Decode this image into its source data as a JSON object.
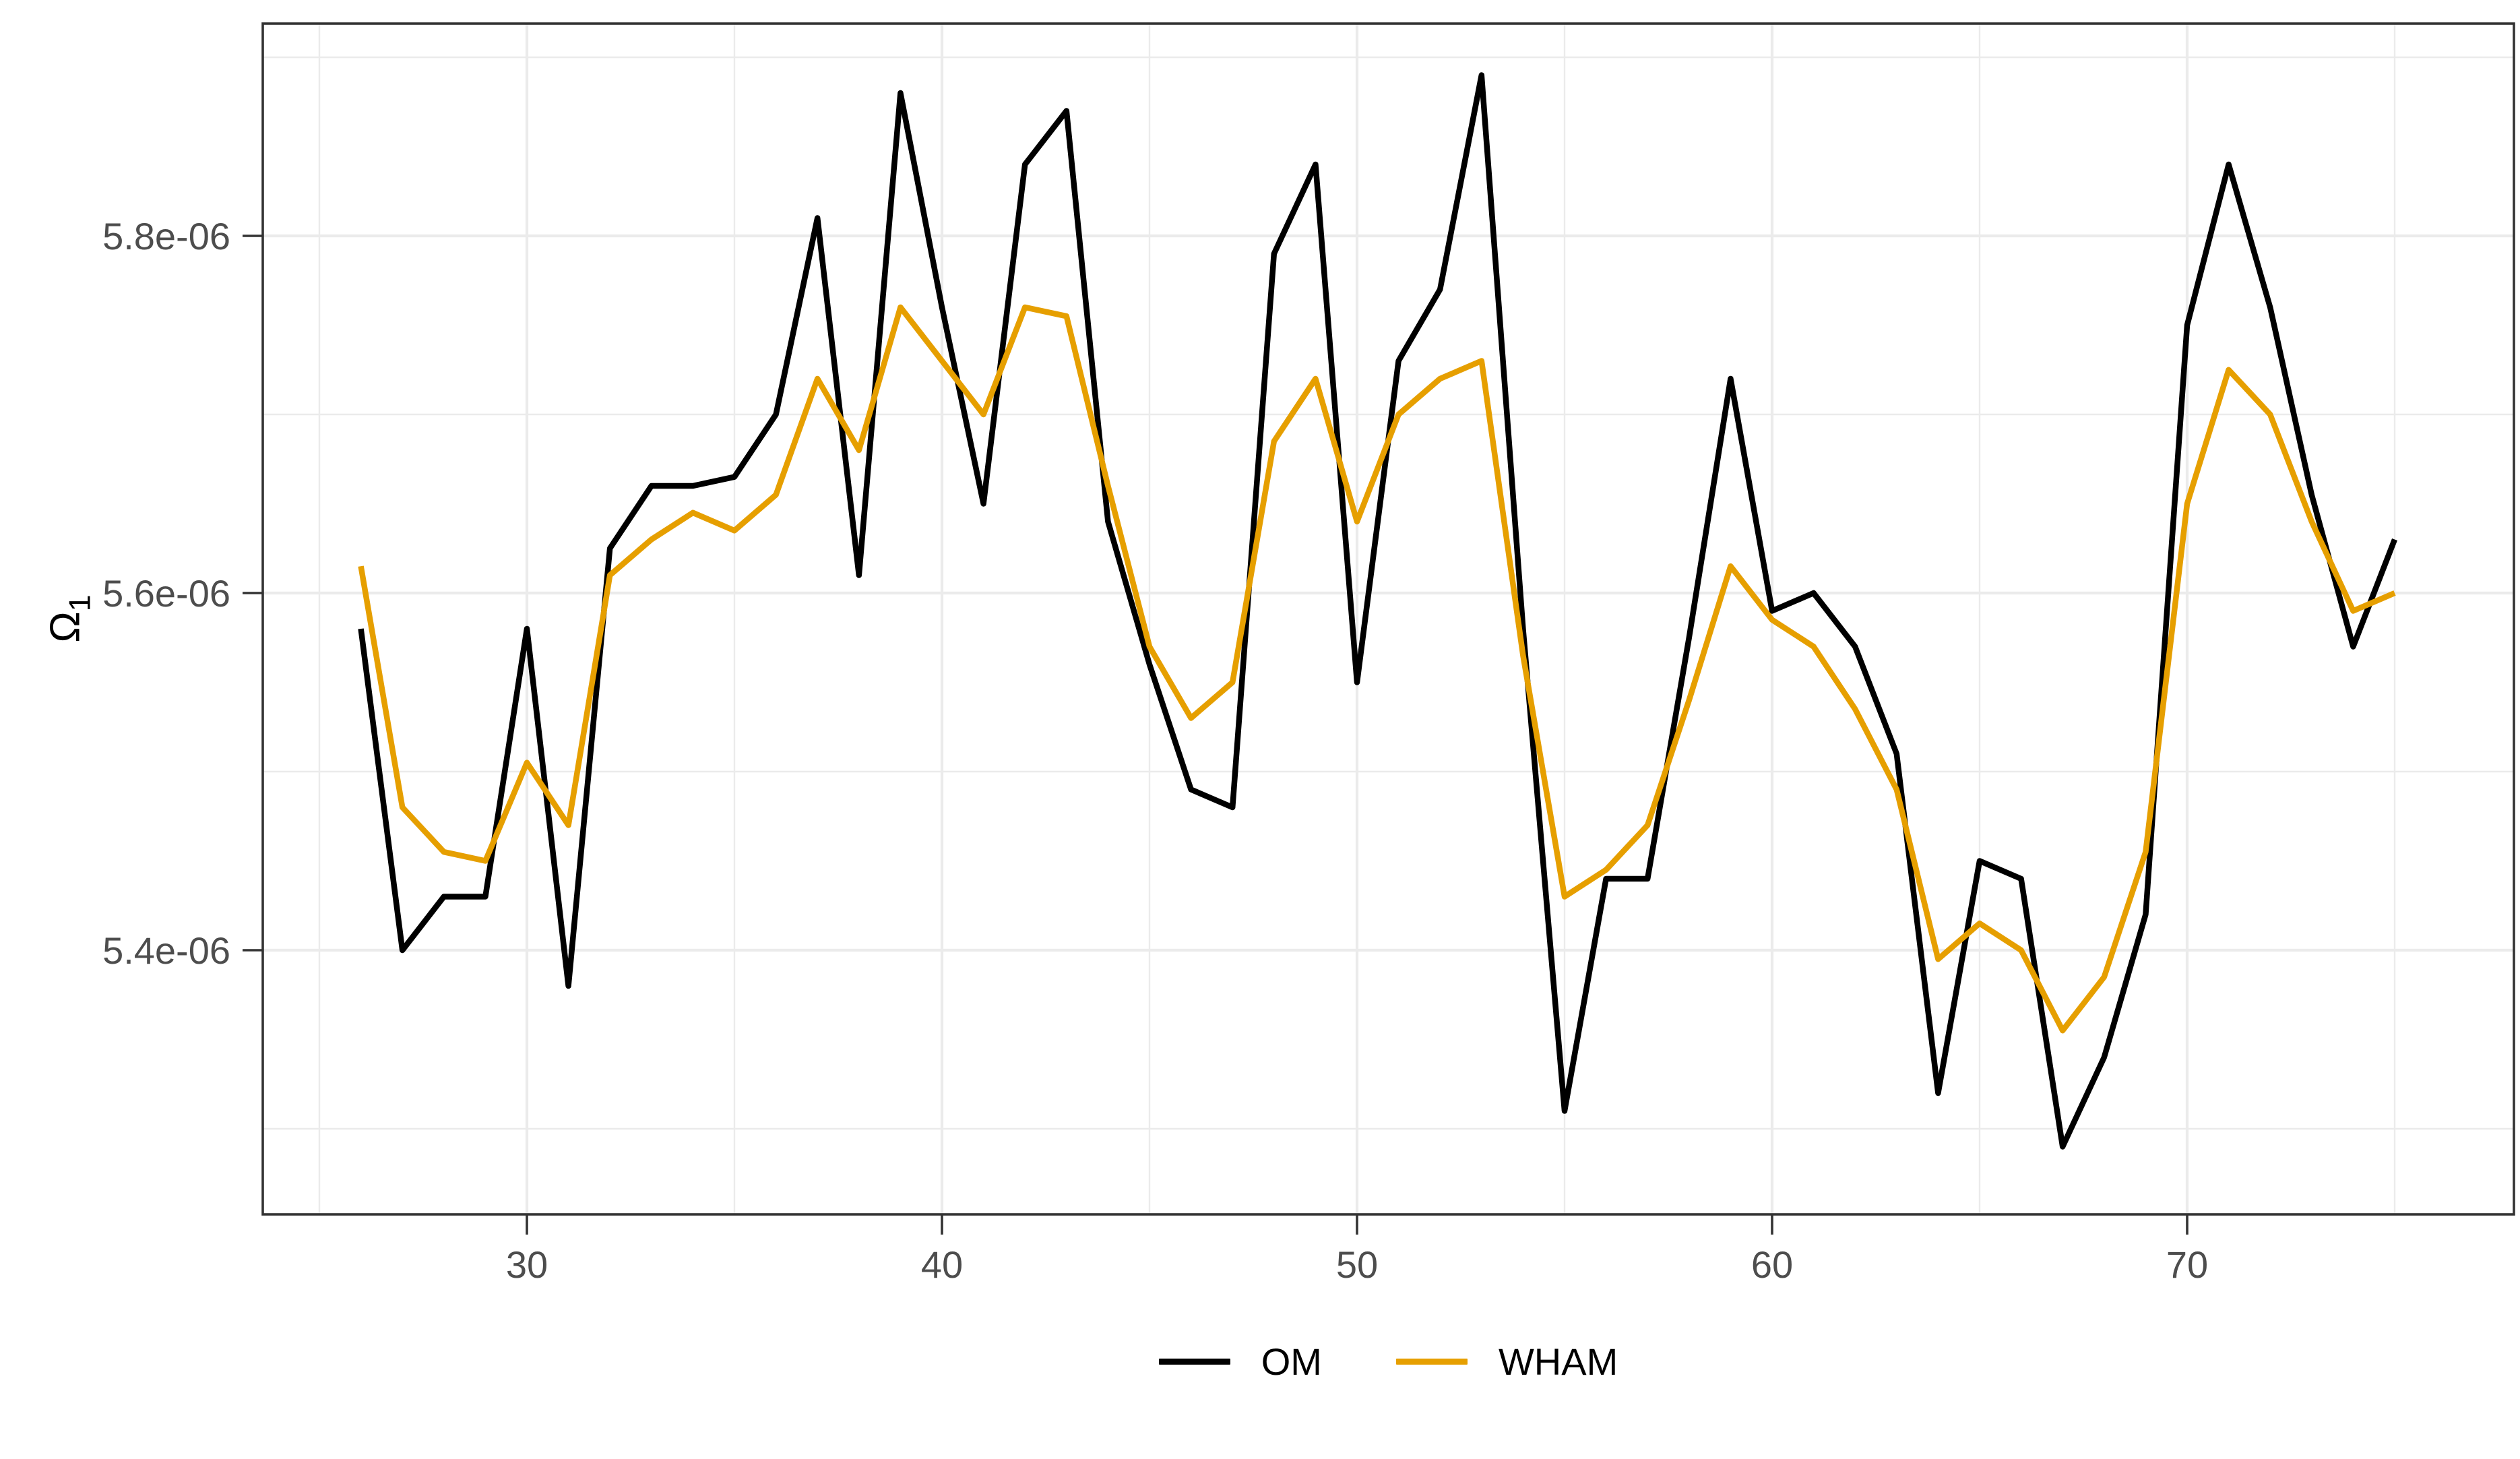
{
  "figure": {
    "background": "#ffffff",
    "y_axis_title": "Ω",
    "y_axis_title_sub": "1"
  },
  "legend": {
    "items": [
      {
        "label": "OM",
        "color": "#000000"
      },
      {
        "label": "WHAM",
        "color": "#E69F00"
      }
    ]
  },
  "theme": {
    "grid_color": "#EBEBEB",
    "panel_border_color": "#333333",
    "tick_mark_color": "#333333",
    "tick_label_color": "#4D4D4D",
    "tick_label_size": 56
  },
  "chart_data": {
    "type": "line",
    "title": "",
    "xlabel": "",
    "ylabel": "Ω1",
    "value_scale": "1e-06",
    "x": [
      26,
      27,
      28,
      29,
      30,
      31,
      32,
      33,
      34,
      35,
      36,
      37,
      38,
      39,
      40,
      41,
      42,
      43,
      44,
      45,
      46,
      47,
      48,
      49,
      50,
      51,
      52,
      53,
      54,
      55,
      56,
      57,
      58,
      59,
      60,
      61,
      62,
      63,
      64,
      65,
      66,
      67,
      68,
      69,
      70,
      71,
      72,
      73,
      74,
      75
    ],
    "series": [
      {
        "name": "OM",
        "color": "#000000",
        "values": [
          5.58,
          5.4,
          5.43,
          5.43,
          5.58,
          5.38,
          5.625,
          5.66,
          5.66,
          5.665,
          5.7,
          5.81,
          5.61,
          5.88,
          5.76,
          5.65,
          5.84,
          5.87,
          5.64,
          5.56,
          5.49,
          5.48,
          5.79,
          5.84,
          5.55,
          5.73,
          5.77,
          5.89,
          5.58,
          5.31,
          5.44,
          5.44,
          5.575,
          5.72,
          5.59,
          5.6,
          5.57,
          5.51,
          5.32,
          5.45,
          5.44,
          5.29,
          5.34,
          5.42,
          5.75,
          5.84,
          5.76,
          5.655,
          5.57,
          5.63
        ]
      },
      {
        "name": "WHAM",
        "color": "#E69F00",
        "values": [
          5.615,
          5.48,
          5.455,
          5.45,
          5.505,
          5.47,
          5.61,
          5.63,
          5.645,
          5.635,
          5.655,
          5.72,
          5.68,
          5.76,
          5.73,
          5.7,
          5.76,
          5.755,
          5.66,
          5.57,
          5.53,
          5.55,
          5.685,
          5.72,
          5.64,
          5.7,
          5.72,
          5.73,
          5.565,
          5.43,
          5.445,
          5.47,
          5.54,
          5.615,
          5.585,
          5.57,
          5.535,
          5.49,
          5.395,
          5.415,
          5.4,
          5.355,
          5.385,
          5.455,
          5.65,
          5.725,
          5.7,
          5.64,
          5.59,
          5.6
        ]
      }
    ],
    "x_ticks": [
      {
        "value": 30,
        "label": "30"
      },
      {
        "value": 40,
        "label": "40"
      },
      {
        "value": 50,
        "label": "50"
      },
      {
        "value": 60,
        "label": "60"
      },
      {
        "value": 70,
        "label": "70"
      }
    ],
    "y_ticks": [
      {
        "value": 5.4,
        "label": "5.4e-06"
      },
      {
        "value": 5.6,
        "label": "5.6e-06"
      },
      {
        "value": 5.8,
        "label": "5.8e-06"
      }
    ],
    "x_minor": [
      25,
      35,
      45,
      55,
      65,
      75
    ],
    "y_minor": [
      5.3,
      5.5,
      5.7,
      5.9
    ],
    "xlim": [
      23.5,
      78.5
    ],
    "ylim": [
      5.265,
      5.925
    ],
    "grid": true,
    "legend_position": "bottom"
  }
}
